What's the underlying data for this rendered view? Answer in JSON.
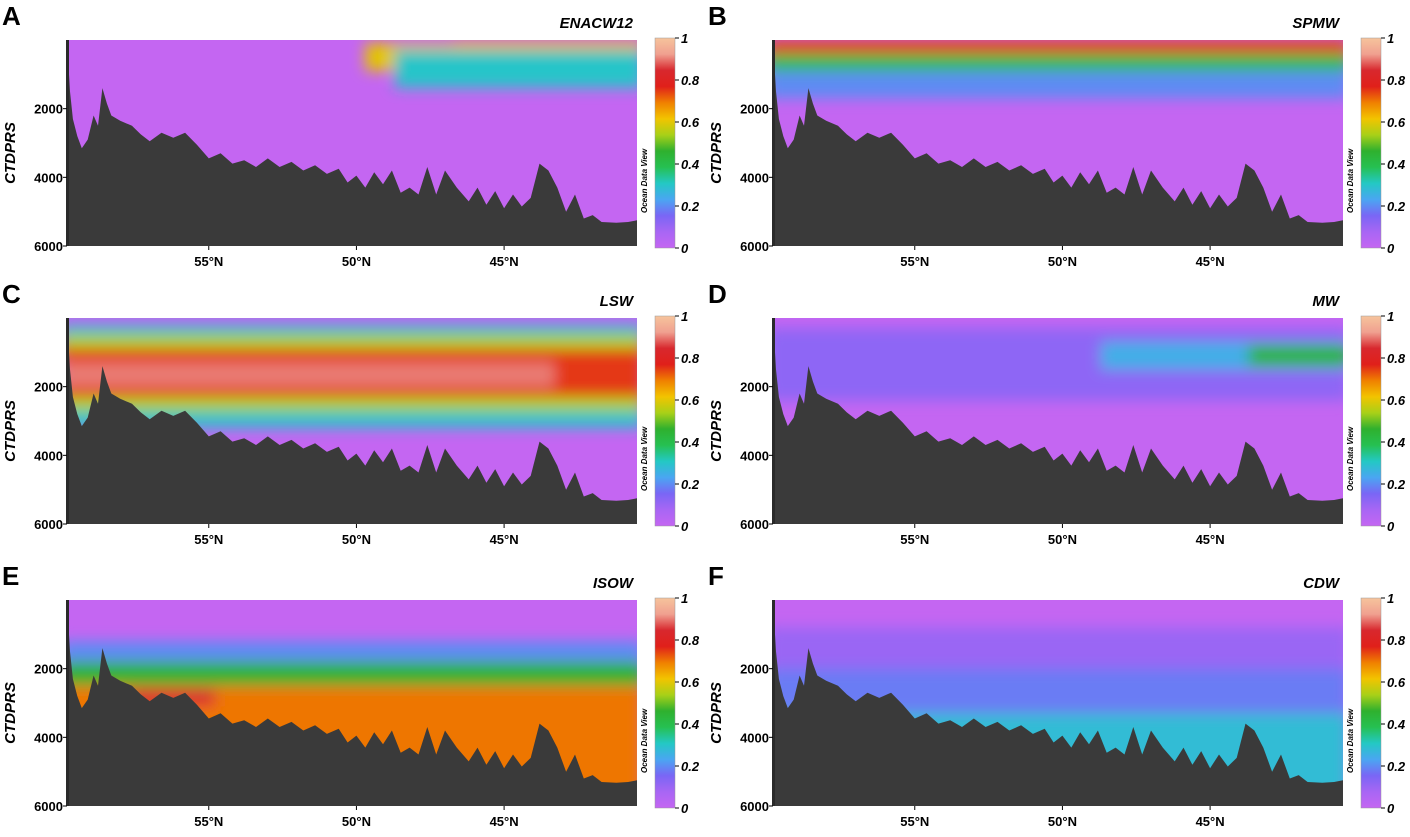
{
  "figure": {
    "colorbar_ticks": [
      "1",
      "0.8",
      "0.6",
      "0.4",
      "0.2",
      "0"
    ],
    "colorbar_stops": [
      "#c466f2",
      "#a866f4",
      "#7a66f5",
      "#4aa6f2",
      "#23c8c4",
      "#26c052",
      "#2fb02e",
      "#a8d018",
      "#f2c400",
      "#f08000",
      "#e0201a",
      "#d8282e",
      "#f0a090",
      "#f6c49c"
    ],
    "watermark": "Ocean Data View",
    "bathymetry_color": "#3a3a3a"
  },
  "chart_data": [
    {
      "panel_letter": "A",
      "title": "ENACW12",
      "type": "heatmap",
      "ylabel": "CTDPRS",
      "yticks": [
        "2000",
        "4000",
        "6000"
      ],
      "xticks": [
        "55°N",
        "50°N",
        "45°N"
      ],
      "ylim": [
        0,
        6000
      ],
      "xrange_lat": [
        59.8,
        40.5
      ],
      "colorbar_range": [
        0,
        1
      ],
      "bands": [
        {
          "depth_top": 0,
          "depth_bottom": 450,
          "lat_start": 46.5,
          "lat_end": 40.5,
          "peak": 0.9
        },
        {
          "depth_top": 100,
          "depth_bottom": 900,
          "lat_start": 49.5,
          "lat_end": 40.5,
          "peak": 0.6
        },
        {
          "depth_top": 300,
          "depth_bottom": 1400,
          "lat_start": 48.5,
          "lat_end": 40.5,
          "peak": 0.3
        }
      ],
      "background_value": 0
    },
    {
      "panel_letter": "B",
      "title": "SPMW",
      "type": "heatmap",
      "ylabel": "CTDPRS",
      "yticks": [
        "2000",
        "4000",
        "6000"
      ],
      "xticks": [
        "55°N",
        "50°N",
        "45°N"
      ],
      "ylim": [
        0,
        6000
      ],
      "xrange_lat": [
        59.8,
        40.5
      ],
      "colorbar_range": [
        0,
        1
      ],
      "bands": [
        {
          "depth_top": 0,
          "depth_bottom": 500,
          "lat_start": 59.8,
          "lat_end": 40.5,
          "peak": 0.75
        },
        {
          "depth_top": 400,
          "depth_bottom": 1000,
          "lat_start": 59.8,
          "lat_end": 40.5,
          "peak": 0.4
        },
        {
          "depth_top": 900,
          "depth_bottom": 1700,
          "lat_start": 59.8,
          "lat_end": 40.5,
          "peak": 0.2
        }
      ],
      "background_value": 0
    },
    {
      "panel_letter": "C",
      "title": "LSW",
      "type": "heatmap",
      "ylabel": "CTDPRS",
      "yticks": [
        "2000",
        "4000",
        "6000"
      ],
      "xticks": [
        "55°N",
        "50°N",
        "45°N"
      ],
      "ylim": [
        0,
        6000
      ],
      "xrange_lat": [
        59.8,
        40.5
      ],
      "colorbar_range": [
        0,
        1
      ],
      "bands": [
        {
          "depth_top": 200,
          "depth_bottom": 3200,
          "lat_start": 59.8,
          "lat_end": 40.5,
          "peak": 0.3
        },
        {
          "depth_top": 500,
          "depth_bottom": 2700,
          "lat_start": 59.8,
          "lat_end": 40.5,
          "peak": 0.55
        },
        {
          "depth_top": 900,
          "depth_bottom": 2300,
          "lat_start": 59.8,
          "lat_end": 40.5,
          "peak": 0.75
        },
        {
          "depth_top": 1300,
          "depth_bottom": 2000,
          "lat_start": 59.8,
          "lat_end": 43.5,
          "peak": 0.9
        }
      ],
      "background_value": 0
    },
    {
      "panel_letter": "D",
      "title": "MW",
      "type": "heatmap",
      "ylabel": "CTDPRS",
      "yticks": [
        "2000",
        "4000",
        "6000"
      ],
      "xticks": [
        "55°N",
        "50°N",
        "45°N"
      ],
      "ylim": [
        0,
        6000
      ],
      "xrange_lat": [
        59.8,
        40.5
      ],
      "colorbar_range": [
        0,
        1
      ],
      "bands": [
        {
          "depth_top": 300,
          "depth_bottom": 2400,
          "lat_start": 59.8,
          "lat_end": 40.5,
          "peak": 0.12
        },
        {
          "depth_top": 700,
          "depth_bottom": 1500,
          "lat_start": 48.5,
          "lat_end": 40.5,
          "peak": 0.25
        },
        {
          "depth_top": 800,
          "depth_bottom": 1400,
          "lat_start": 43.5,
          "lat_end": 40.5,
          "peak": 0.45
        }
      ],
      "background_value": 0
    },
    {
      "panel_letter": "E",
      "title": "ISOW",
      "type": "heatmap",
      "ylabel": "CTDPRS",
      "yticks": [
        "2000",
        "4000",
        "6000"
      ],
      "xticks": [
        "55°N",
        "50°N",
        "45°N"
      ],
      "ylim": [
        0,
        6000
      ],
      "xrange_lat": [
        59.8,
        40.5
      ],
      "colorbar_range": [
        0,
        1
      ],
      "bands": [
        {
          "depth_top": 1200,
          "depth_bottom": 6000,
          "lat_start": 59.8,
          "lat_end": 40.5,
          "peak": 0.2
        },
        {
          "depth_top": 1800,
          "depth_bottom": 6000,
          "lat_start": 59.8,
          "lat_end": 40.5,
          "peak": 0.45
        },
        {
          "depth_top": 2500,
          "depth_bottom": 6000,
          "lat_start": 59.8,
          "lat_end": 40.5,
          "peak": 0.7
        },
        {
          "depth_top": 2600,
          "depth_bottom": 3100,
          "lat_start": 57.5,
          "lat_end": 55.0,
          "peak": 0.85
        }
      ],
      "background_value": 0
    },
    {
      "panel_letter": "F",
      "title": "CDW",
      "type": "heatmap",
      "ylabel": "CTDPRS",
      "yticks": [
        "2000",
        "4000",
        "6000"
      ],
      "xticks": [
        "55°N",
        "50°N",
        "45°N"
      ],
      "ylim": [
        0,
        6000
      ],
      "xrange_lat": [
        59.8,
        40.5
      ],
      "colorbar_range": [
        0,
        1
      ],
      "bands": [
        {
          "depth_top": 800,
          "depth_bottom": 6000,
          "lat_start": 59.8,
          "lat_end": 40.5,
          "peak": 0.1
        },
        {
          "depth_top": 2000,
          "depth_bottom": 6000,
          "lat_start": 59.8,
          "lat_end": 40.5,
          "peak": 0.18
        },
        {
          "depth_top": 3300,
          "depth_bottom": 6000,
          "lat_start": 59.8,
          "lat_end": 40.5,
          "peak": 0.28
        }
      ],
      "background_value": 0
    }
  ],
  "bathymetry_profile": [
    [
      59.8,
      0
    ],
    [
      59.7,
      1500
    ],
    [
      59.6,
      2300
    ],
    [
      59.45,
      2800
    ],
    [
      59.3,
      3150
    ],
    [
      59.1,
      2900
    ],
    [
      58.9,
      2200
    ],
    [
      58.75,
      2500
    ],
    [
      58.6,
      1400
    ],
    [
      58.45,
      1850
    ],
    [
      58.3,
      2200
    ],
    [
      58.0,
      2350
    ],
    [
      57.6,
      2500
    ],
    [
      57.3,
      2750
    ],
    [
      57.0,
      2950
    ],
    [
      56.6,
      2700
    ],
    [
      56.2,
      2850
    ],
    [
      55.8,
      2700
    ],
    [
      55.4,
      3050
    ],
    [
      55.0,
      3450
    ],
    [
      54.6,
      3300
    ],
    [
      54.2,
      3600
    ],
    [
      53.8,
      3500
    ],
    [
      53.4,
      3700
    ],
    [
      53.0,
      3450
    ],
    [
      52.6,
      3700
    ],
    [
      52.2,
      3550
    ],
    [
      51.8,
      3800
    ],
    [
      51.4,
      3650
    ],
    [
      51.0,
      3900
    ],
    [
      50.6,
      3750
    ],
    [
      50.3,
      4150
    ],
    [
      50.0,
      3950
    ],
    [
      49.7,
      4300
    ],
    [
      49.4,
      3850
    ],
    [
      49.1,
      4200
    ],
    [
      48.8,
      3800
    ],
    [
      48.5,
      4450
    ],
    [
      48.2,
      4300
    ],
    [
      47.9,
      4500
    ],
    [
      47.6,
      3700
    ],
    [
      47.3,
      4500
    ],
    [
      47.0,
      3800
    ],
    [
      46.6,
      4300
    ],
    [
      46.2,
      4700
    ],
    [
      45.9,
      4300
    ],
    [
      45.6,
      4800
    ],
    [
      45.3,
      4400
    ],
    [
      45.0,
      4900
    ],
    [
      44.7,
      4500
    ],
    [
      44.4,
      4850
    ],
    [
      44.1,
      4600
    ],
    [
      43.8,
      3600
    ],
    [
      43.5,
      3800
    ],
    [
      43.2,
      4300
    ],
    [
      42.9,
      5000
    ],
    [
      42.6,
      4500
    ],
    [
      42.3,
      5200
    ],
    [
      42.0,
      5100
    ],
    [
      41.7,
      5300
    ],
    [
      41.2,
      5320
    ],
    [
      40.8,
      5300
    ],
    [
      40.5,
      5250
    ]
  ]
}
